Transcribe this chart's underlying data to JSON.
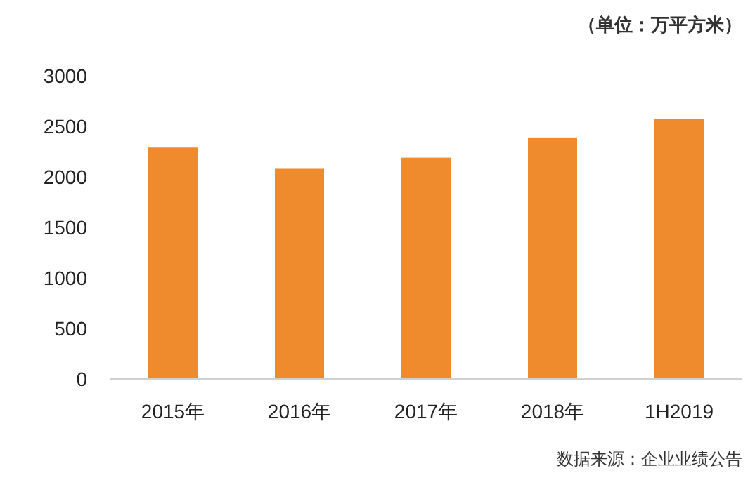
{
  "chart_data": {
    "type": "bar",
    "categories": [
      "2015年",
      "2016年",
      "2017年",
      "2018年",
      "1H2019"
    ],
    "values": [
      2290,
      2080,
      2190,
      2390,
      2570
    ],
    "color": "#ef8b2c",
    "ylim": [
      0,
      3000
    ],
    "yticks": [
      0,
      500,
      1000,
      1500,
      2000,
      2500,
      3000
    ],
    "grid": false,
    "annotations": [
      "（单位：万平方米）",
      "数据来源：企业业绩公告"
    ]
  }
}
